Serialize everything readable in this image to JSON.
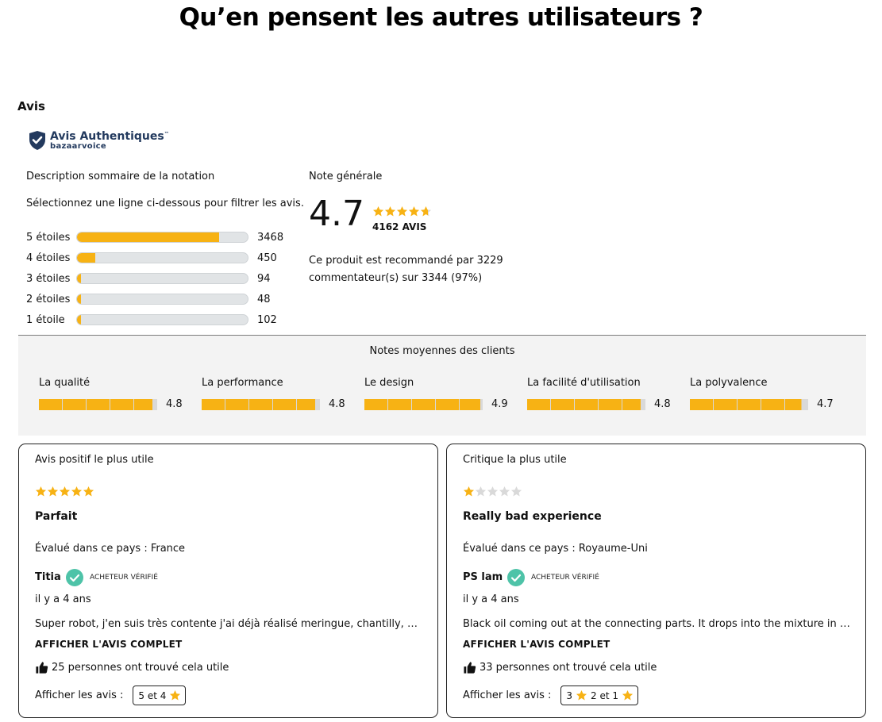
{
  "page": {
    "title": "Qu’en pensent les autres utilisateurs ?",
    "section_label": "Avis"
  },
  "brand": {
    "name": "Avis Authentiques",
    "trademark": "™",
    "sub": "bazaarvoice"
  },
  "summary": {
    "title": "Description sommaire de la notation",
    "hint": "Sélectionnez une ligne ci-dessous pour filtrer les avis.",
    "rows": [
      {
        "label": "5 étoiles",
        "count": "3468",
        "fraction": 0.833
      },
      {
        "label": "4 étoiles",
        "count": "450",
        "fraction": 0.108
      },
      {
        "label": "3 étoiles",
        "count": "94",
        "fraction": 0.023
      },
      {
        "label": "2 étoiles",
        "count": "48",
        "fraction": 0.012
      },
      {
        "label": "1 étoile",
        "count": "102",
        "fraction": 0.025
      }
    ]
  },
  "overall": {
    "title": "Note générale",
    "score": "4.7",
    "rating": 4.7,
    "count": "4162 AVIS",
    "recommend": "Ce produit est recommandé par 3229 commentateur(s) sur 3344 (97%)"
  },
  "averages": {
    "title": "Notes moyennes des clients",
    "items": [
      {
        "label": "La qualité",
        "value": "4.8",
        "rating": 4.8
      },
      {
        "label": "La performance",
        "value": "4.8",
        "rating": 4.8
      },
      {
        "label": "Le design",
        "value": "4.9",
        "rating": 4.9
      },
      {
        "label": "La facilité d'utilisation",
        "value": "4.8",
        "rating": 4.8
      },
      {
        "label": "La polyvalence",
        "value": "4.7",
        "rating": 4.7
      }
    ]
  },
  "cards": {
    "positive": {
      "heading": "Avis positif le plus utile",
      "rating": 5,
      "title": "Parfait",
      "country": "Évalué dans ce pays : France",
      "author": "Titia",
      "verified": "ACHETEUR VÉRIFIÉ",
      "time": "il y a 4 ans",
      "excerpt": "Super robot, j'en suis très contente j'ai déjà réalisé meringue, chantilly, pâtes...",
      "link": "AFFICHER L'AVIS COMPLET",
      "helpful": "25 personnes ont trouvé cela utile",
      "filter_label": "Afficher les avis :",
      "filter_button": "5 et 4"
    },
    "critical": {
      "heading": "Critique la plus utile",
      "rating": 1,
      "title": "Really bad experience",
      "country": "Évalué dans ce pays : Royaume-Uni",
      "author": "PS lam",
      "verified": "ACHETEUR VÉRIFIÉ",
      "time": "il y a 4 ans",
      "excerpt": "Black oil coming out at the connecting parts. It drops into the mixture in the...",
      "link": "AFFICHER L'AVIS COMPLET",
      "helpful": "33 personnes ont trouvé cela utile",
      "filter_label": "Afficher les avis :",
      "filter_button_a": "3",
      "filter_button_b": "2 et 1"
    }
  },
  "colors": {
    "accent": "#f7b214",
    "track": "#e1e4e6",
    "verified": "#4ec3a8",
    "brand": "#233a5e"
  },
  "icons": {
    "brand": "shield-check-icon",
    "star": "star-icon",
    "verified": "check-circle-icon",
    "helpful": "thumbs-up-icon"
  }
}
